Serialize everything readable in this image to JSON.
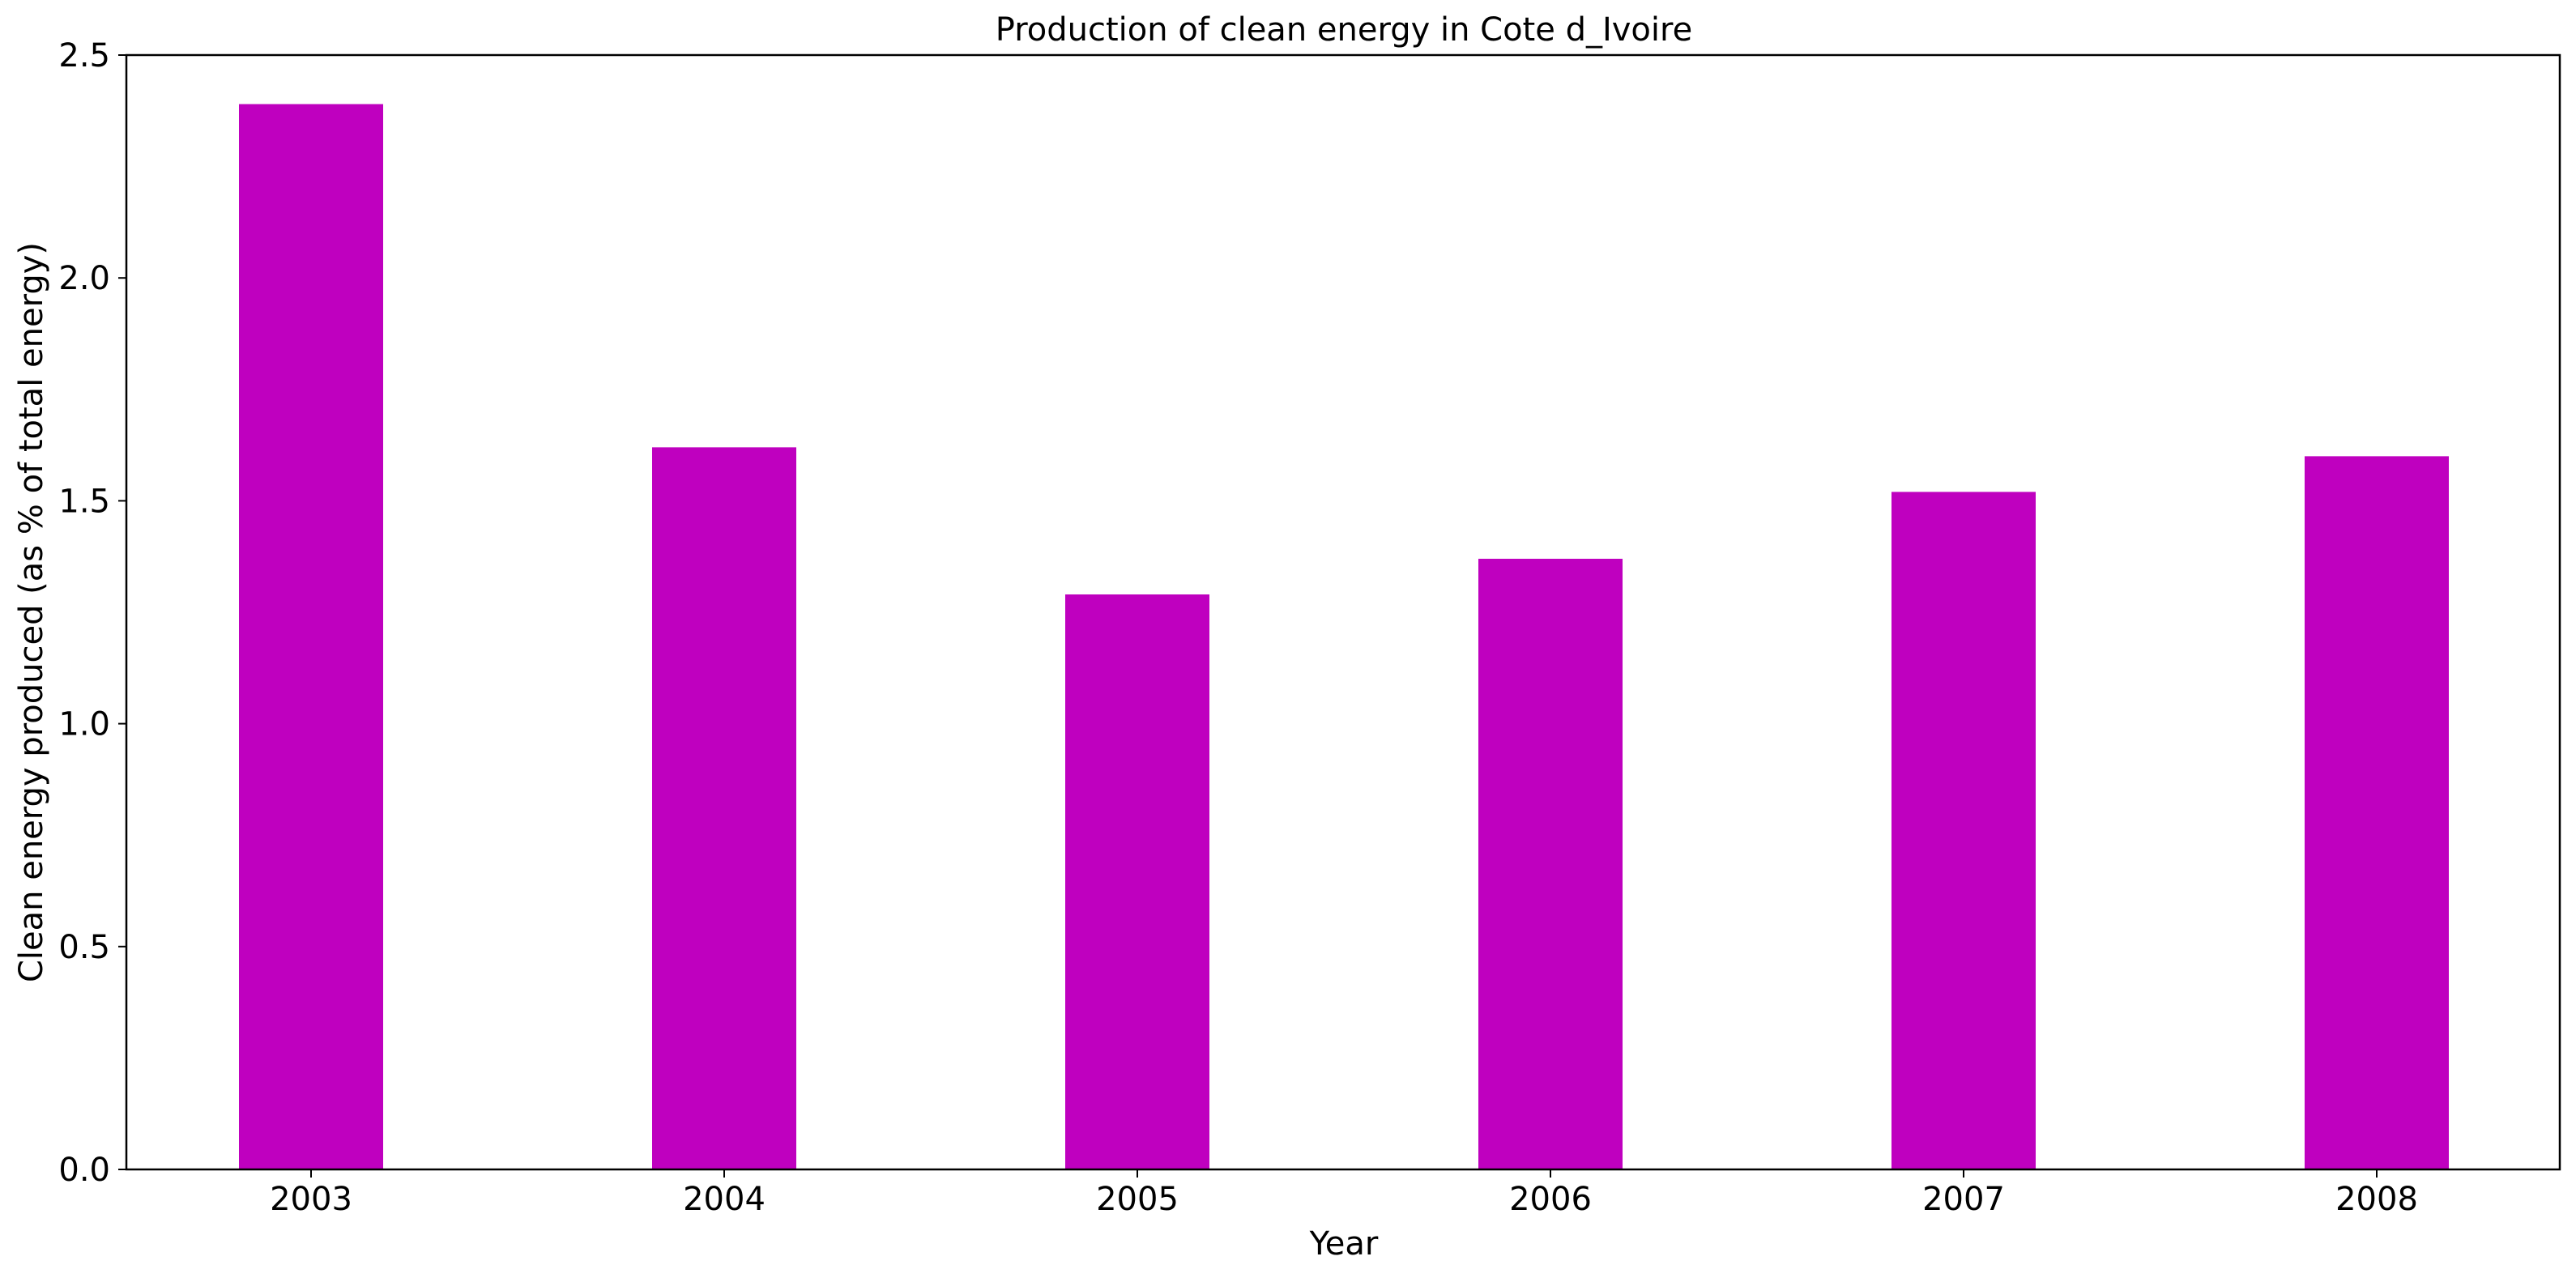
{
  "chart_data": {
    "type": "bar",
    "title": "Production of clean energy in Cote d_Ivoire",
    "xlabel": "Year",
    "ylabel": "Clean energy produced (as % of total energy)",
    "categories": [
      "2003",
      "2004",
      "2005",
      "2006",
      "2007",
      "2008"
    ],
    "values": [
      2.39,
      1.62,
      1.29,
      1.37,
      1.52,
      1.6
    ],
    "ylim": [
      0,
      2.5
    ],
    "yticks": [
      0.0,
      0.5,
      1.0,
      1.5,
      2.0,
      2.5
    ],
    "ytick_labels": [
      "0.0",
      "0.5",
      "1.0",
      "1.5",
      "2.0",
      "2.5"
    ],
    "bar_color": "#bf00bf",
    "grid": false,
    "legend": "none"
  }
}
